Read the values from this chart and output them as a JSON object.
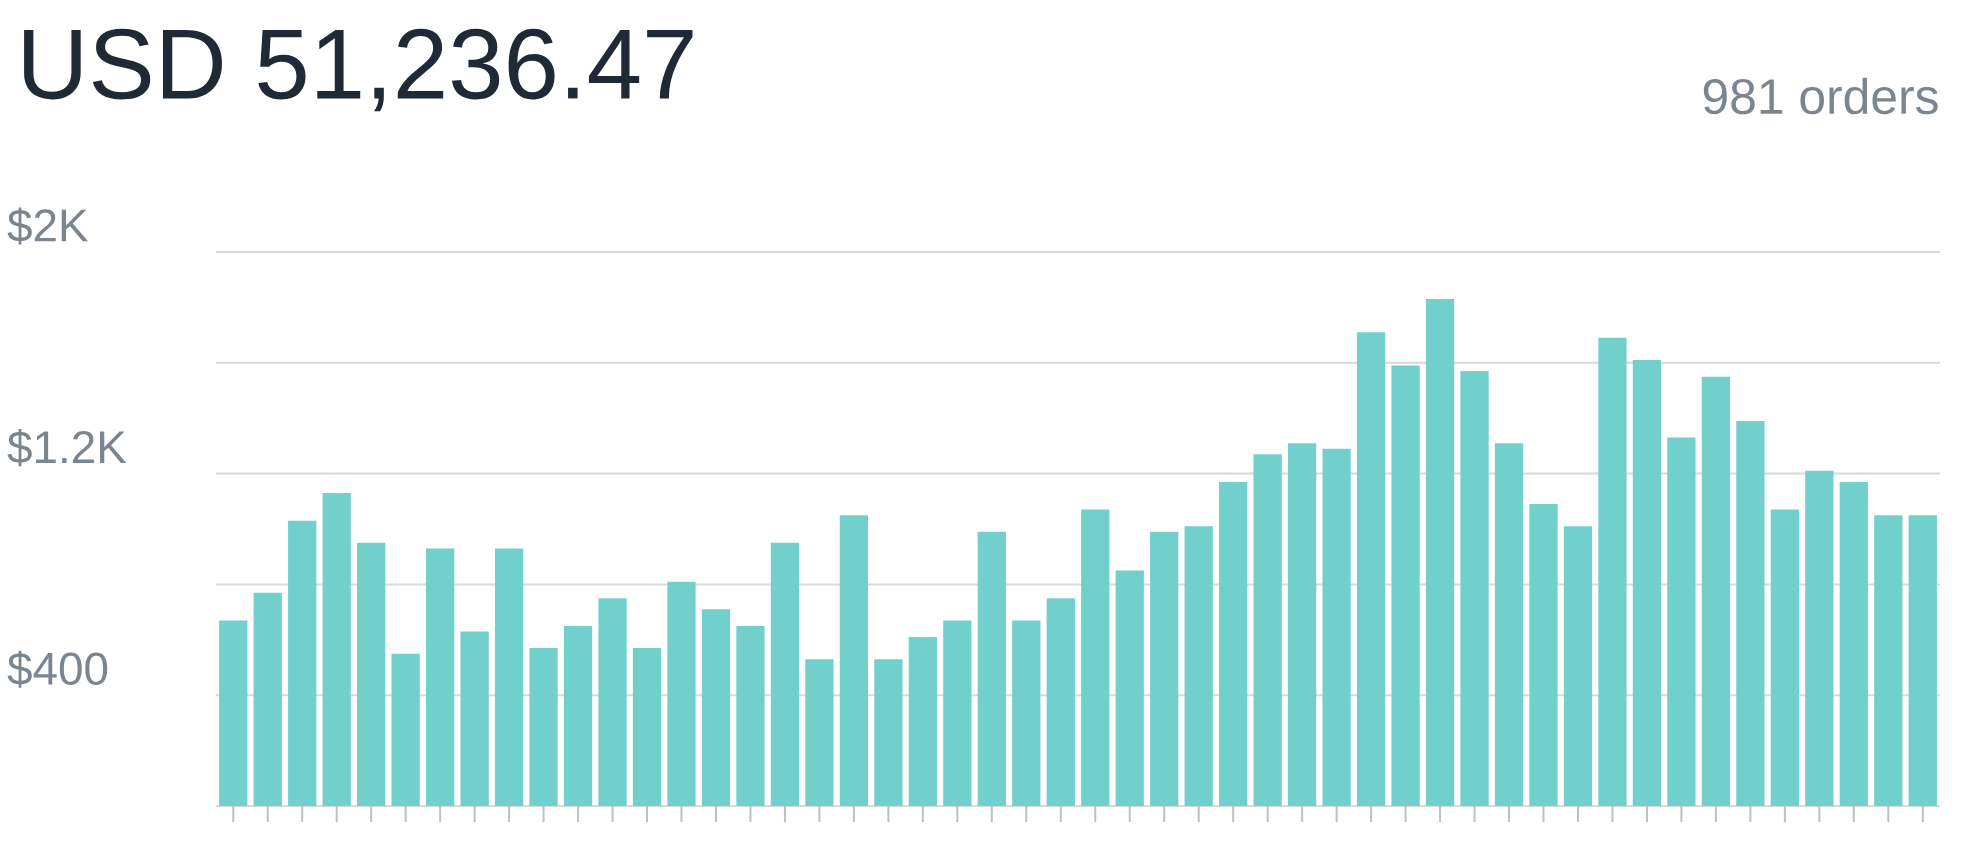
{
  "chart_data": {
    "type": "bar",
    "title": "USD 51,236.47",
    "subtitle": "981 orders",
    "categories": [
      null,
      null,
      null,
      null,
      null,
      null,
      null,
      null,
      null,
      null,
      null,
      null,
      null,
      null,
      null,
      null,
      null,
      null,
      null,
      null,
      null,
      null,
      null,
      null,
      null,
      null,
      null,
      null,
      null,
      null,
      null,
      null,
      null,
      null,
      null,
      null,
      null,
      null,
      null,
      null,
      null,
      null,
      null,
      null,
      null,
      null,
      null,
      null,
      null,
      null
    ],
    "values": [
      670,
      770,
      1030,
      1130,
      950,
      550,
      930,
      630,
      930,
      570,
      650,
      750,
      570,
      810,
      710,
      650,
      950,
      530,
      1050,
      530,
      610,
      670,
      990,
      670,
      750,
      1070,
      850,
      990,
      1010,
      1170,
      1270,
      1310,
      1290,
      1710,
      1590,
      1830,
      1570,
      1310,
      1090,
      1010,
      1690,
      1610,
      1330,
      1550,
      1390,
      1070,
      1210,
      1170,
      1050,
      1050
    ],
    "color": "#72d0cc",
    "ylim": [
      0,
      2000
    ],
    "yticks": [
      {
        "value": 0,
        "label": null
      },
      {
        "value": 400,
        "label": "$400"
      },
      {
        "value": 800,
        "label": null
      },
      {
        "value": 1200,
        "label": "$1.2K"
      },
      {
        "value": 1600,
        "label": null
      },
      {
        "value": 2000,
        "label": "$2K"
      }
    ],
    "grid": "y"
  }
}
